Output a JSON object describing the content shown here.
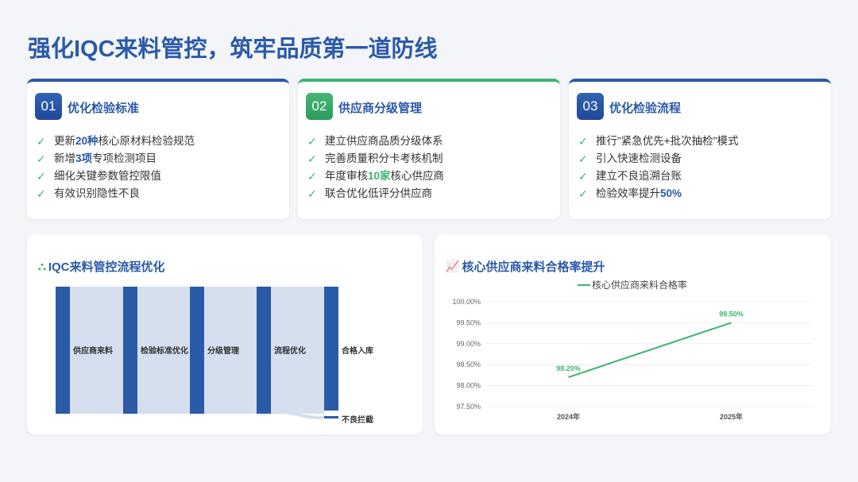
{
  "title": "强化IQC来料管控，筑牢品质第一道防线",
  "cards": [
    {
      "num": "01",
      "title": "优化检验标准",
      "accent": "#2b5aa8",
      "items": [
        {
          "pre": "更新",
          "hl": "20种",
          "post": "核心原材料检验规范"
        },
        {
          "pre": "新增",
          "hl": "3项",
          "post": "专项检测项目"
        },
        {
          "pre": "细化关键参数管控限值",
          "hl": "",
          "post": ""
        },
        {
          "pre": "有效识别隐性不良",
          "hl": "",
          "post": ""
        }
      ]
    },
    {
      "num": "02",
      "title": "供应商分级管理",
      "accent": "#3cb46e",
      "items": [
        {
          "pre": "建立供应商品质分级体系",
          "hl": "",
          "post": ""
        },
        {
          "pre": "完善质量积分卡考核机制",
          "hl": "",
          "post": ""
        },
        {
          "pre": "年度审核",
          "hl": "10家",
          "post": "核心供应商"
        },
        {
          "pre": "联合优化低评分供应商",
          "hl": "",
          "post": ""
        }
      ]
    },
    {
      "num": "03",
      "title": "优化检验流程",
      "accent": "#2b5aa8",
      "items": [
        {
          "pre": "推行\"紧急优先+批次抽检\"模式",
          "hl": "",
          "post": ""
        },
        {
          "pre": "引入快速检测设备",
          "hl": "",
          "post": ""
        },
        {
          "pre": "建立不良追溯台账",
          "hl": "",
          "post": ""
        },
        {
          "pre": "检验效率提升",
          "hl": "50%",
          "post": ""
        }
      ]
    }
  ],
  "flow_panel": {
    "title": "IQC来料管控流程优化",
    "icon": "sitemap-icon",
    "nodes": [
      "供应商来料",
      "检验标准优化",
      "分级管理",
      "流程优化",
      "合格入库",
      "不良拦截"
    ]
  },
  "chart_panel": {
    "title": "核心供应商来料合格率提升",
    "icon": "line-chart-icon"
  },
  "chart_data": {
    "type": "line",
    "categories": [
      "2024年",
      "2025年"
    ],
    "series": [
      {
        "name": "核心供应商来料合格率",
        "values": [
          98.2,
          99.5
        ],
        "labels": [
          "98.20%",
          "99.50%"
        ],
        "color": "#3cb46e"
      }
    ],
    "ylim": [
      97.5,
      100
    ],
    "yticks": [
      "97.50%",
      "98.00%",
      "98.50%",
      "99.00%",
      "99.50%",
      "100.00%"
    ],
    "grid": true,
    "legend": "top"
  }
}
